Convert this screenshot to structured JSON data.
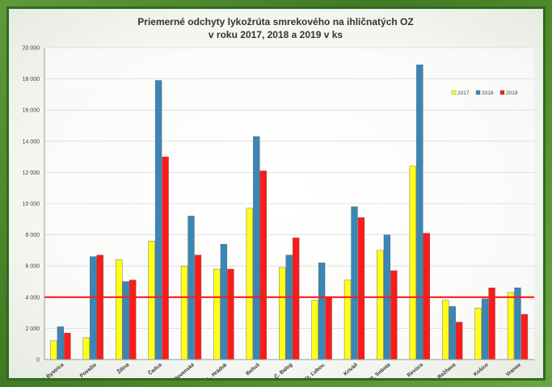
{
  "chart_data": {
    "type": "bar",
    "title": "Priemerné odchyty lykožrúta smrekového na ihličnatých OZ",
    "subtitle": "v roku 2017, 2018 a 2019 v ks",
    "xlabel": "",
    "ylabel": "",
    "ylim": [
      0,
      20000
    ],
    "yticks": [
      0,
      2000,
      4000,
      6000,
      8000,
      10000,
      12000,
      14000,
      16000,
      18000,
      20000
    ],
    "ytick_labels": [
      "0",
      "2 000",
      "4 000",
      "6 000",
      "8 000",
      "10 000",
      "12 000",
      "14 000",
      "16 000",
      "18 000",
      "20 000"
    ],
    "categories": [
      "P. Bystrica",
      "Považie",
      "Žilina",
      "Čadca",
      "Slovenské",
      "L. Hrádok",
      "Beňuš",
      "Č. Balog",
      "St. Ľubov.",
      "Kriváň",
      "R. Sobota",
      "Revúca",
      "Rožňava",
      "Košice",
      "Vranov"
    ],
    "series": [
      {
        "name": "2017",
        "color": "#ffff1a",
        "values": [
          1200,
          1400,
          6400,
          7600,
          6000,
          5800,
          9700,
          5900,
          3800,
          5100,
          7000,
          12400,
          3800,
          3300,
          4300
        ]
      },
      {
        "name": "2018",
        "color": "#3a87b5",
        "values": [
          2100,
          6600,
          5000,
          17900,
          9200,
          7400,
          14300,
          6700,
          6200,
          9800,
          8000,
          18900,
          3400,
          3900,
          4600
        ]
      },
      {
        "name": "2019",
        "color": "#ff1a1a",
        "values": [
          1700,
          6700,
          5100,
          13000,
          6700,
          5800,
          12100,
          7800,
          4000,
          9100,
          5700,
          8100,
          2400,
          4600,
          2900
        ]
      }
    ],
    "reference_line": {
      "value": 4000,
      "color": "#ff1a1a"
    },
    "legend_position": "top-right",
    "grid": true
  }
}
